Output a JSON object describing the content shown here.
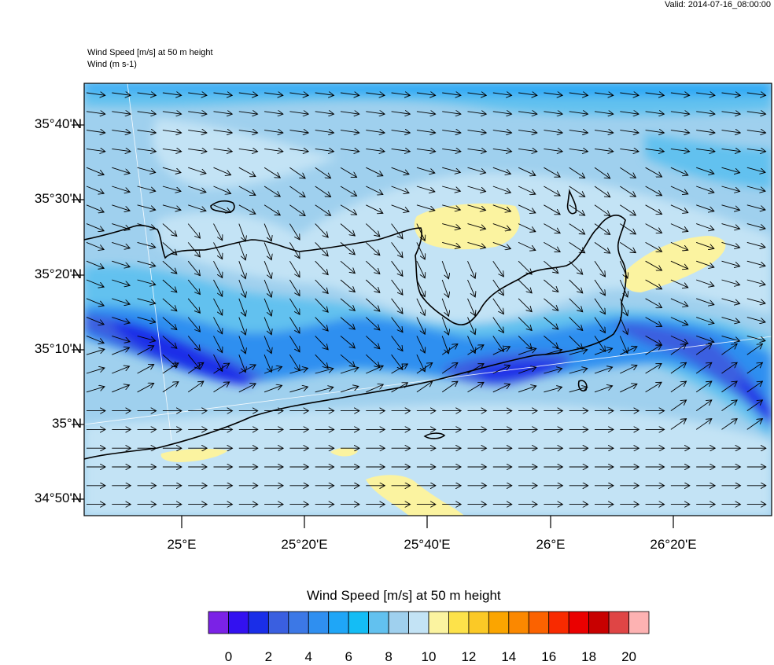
{
  "header": {
    "valid": "Valid: 2014-07-16_08:00:00",
    "title_line1": "Wind Speed [m/s] at 50 m height",
    "title_line2": "Wind   (m s-1)"
  },
  "axes": {
    "lat_labels": [
      "35°40'N",
      "35°30'N",
      "35°20'N",
      "35°10'N",
      "35°N",
      "34°50'N"
    ],
    "lon_labels": [
      "25°E",
      "25°20'E",
      "25°40'E",
      "26°E",
      "26°20'E"
    ]
  },
  "colorbar": {
    "title": "Wind Speed [m/s] at 50 m height",
    "ticks": [
      "0",
      "2",
      "4",
      "6",
      "8",
      "10",
      "12",
      "14",
      "16",
      "18",
      "20"
    ],
    "colors": [
      "#7b22e6",
      "#3311f0",
      "#1a2ee8",
      "#3a5fe0",
      "#3c78e6",
      "#2f8ff0",
      "#1fa6f7",
      "#14bdf5",
      "#62c1ef",
      "#9fd0ee",
      "#c3e3f5",
      "#fbf3a0",
      "#fde24a",
      "#fbc926",
      "#fba500",
      "#fb8800",
      "#fb6200",
      "#f82a00",
      "#ea0000",
      "#c80000",
      "#df4545",
      "#fdb2b2"
    ]
  },
  "colors": {
    "bg_field": "#9fd0ee",
    "coast": "#000000"
  }
}
